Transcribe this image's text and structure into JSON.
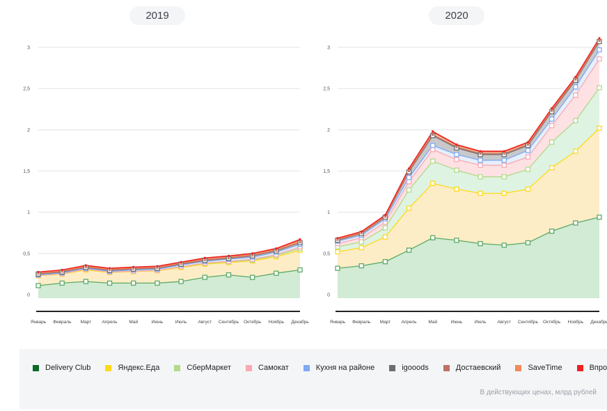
{
  "footnote": "В действующих ценах, млрд рублей",
  "legend": [
    {
      "name": "Delivery Club",
      "color": "#0b6b2a"
    },
    {
      "name": "Яндекс.Еда",
      "color": "#ffd91a"
    },
    {
      "name": "СберМаркет",
      "color": "#b3d98a"
    },
    {
      "name": "Самокат",
      "color": "#f9a9b1"
    },
    {
      "name": "Кухня на районе",
      "color": "#7eaaf5"
    },
    {
      "name": "igooods",
      "color": "#6e6e6e"
    },
    {
      "name": "Достаевский",
      "color": "#c07263"
    },
    {
      "name": "SaveTime",
      "color": "#f28a5c"
    },
    {
      "name": "Впрок",
      "color": "#ee2222"
    }
  ],
  "chart_data": [
    {
      "type": "area",
      "stacked": true,
      "title": "2019",
      "xlabel": "",
      "ylabel": "",
      "ylim": [
        0,
        3
      ],
      "yticks": [
        "0",
        "0,5",
        "1",
        "1,5",
        "2",
        "2,5",
        "3"
      ],
      "ytick_values": [
        0,
        0.5,
        1,
        1.5,
        2,
        2.5,
        3
      ],
      "grid": true,
      "categories": [
        "Январь",
        "Февраль",
        "Март",
        "Апрель",
        "Май",
        "Июнь",
        "Июль",
        "Август",
        "Сентябрь",
        "Октябрь",
        "Ноябрь",
        "Декабрь"
      ],
      "series": [
        {
          "name": "Delivery Club",
          "values": [
            0.11,
            0.14,
            0.16,
            0.14,
            0.14,
            0.14,
            0.16,
            0.21,
            0.24,
            0.21,
            0.26,
            0.3
          ]
        },
        {
          "name": "Яндекс.Еда",
          "values": [
            0.12,
            0.11,
            0.14,
            0.13,
            0.14,
            0.15,
            0.17,
            0.16,
            0.15,
            0.2,
            0.2,
            0.24
          ]
        },
        {
          "name": "СберМаркет",
          "values": [
            0.005,
            0.005,
            0.01,
            0.005,
            0.005,
            0.005,
            0.01,
            0.01,
            0.01,
            0.01,
            0.015,
            0.02
          ]
        },
        {
          "name": "Самокат",
          "values": [
            0.0,
            0.0,
            0.0,
            0.0,
            0.0,
            0.0,
            0.0,
            0.005,
            0.005,
            0.01,
            0.01,
            0.02
          ]
        },
        {
          "name": "Кухня на районе",
          "values": [
            0.005,
            0.01,
            0.01,
            0.01,
            0.015,
            0.015,
            0.02,
            0.02,
            0.025,
            0.025,
            0.03,
            0.03
          ]
        },
        {
          "name": "igooods",
          "values": [
            0.01,
            0.01,
            0.01,
            0.01,
            0.01,
            0.01,
            0.01,
            0.01,
            0.01,
            0.015,
            0.015,
            0.02
          ]
        },
        {
          "name": "Достаевский",
          "values": [
            0.005,
            0.005,
            0.005,
            0.005,
            0.005,
            0.005,
            0.005,
            0.005,
            0.005,
            0.005,
            0.005,
            0.005
          ]
        },
        {
          "name": "SaveTime",
          "values": [
            0.01,
            0.01,
            0.01,
            0.01,
            0.01,
            0.01,
            0.01,
            0.015,
            0.015,
            0.015,
            0.015,
            0.02
          ]
        },
        {
          "name": "Впрок",
          "values": [
            0.01,
            0.01,
            0.01,
            0.01,
            0.01,
            0.01,
            0.01,
            0.01,
            0.01,
            0.01,
            0.01,
            0.015
          ]
        }
      ]
    },
    {
      "type": "area",
      "stacked": true,
      "title": "2020",
      "xlabel": "",
      "ylabel": "",
      "ylim": [
        0,
        3
      ],
      "yticks": [
        "0",
        "0,5",
        "1",
        "1,5",
        "2",
        "2,5",
        "3"
      ],
      "ytick_values": [
        0,
        0.5,
        1,
        1.5,
        2,
        2.5,
        3
      ],
      "grid": true,
      "categories": [
        "Январь",
        "Февраль",
        "Март",
        "Апрель",
        "Май",
        "Июнь",
        "Июль",
        "Август",
        "Сентябрь",
        "Октябрь",
        "Ноябрь",
        "Декабрь"
      ],
      "series": [
        {
          "name": "Delivery Club",
          "values": [
            0.32,
            0.35,
            0.4,
            0.54,
            0.69,
            0.66,
            0.62,
            0.6,
            0.63,
            0.77,
            0.87,
            0.94
          ]
        },
        {
          "name": "Яндекс.Еда",
          "values": [
            0.2,
            0.22,
            0.3,
            0.51,
            0.66,
            0.62,
            0.61,
            0.63,
            0.65,
            0.77,
            0.87,
            1.08
          ]
        },
        {
          "name": "СберМаркет",
          "values": [
            0.06,
            0.07,
            0.11,
            0.22,
            0.27,
            0.23,
            0.2,
            0.2,
            0.24,
            0.31,
            0.37,
            0.49
          ]
        },
        {
          "name": "Самокат",
          "values": [
            0.04,
            0.05,
            0.07,
            0.1,
            0.14,
            0.13,
            0.14,
            0.14,
            0.15,
            0.2,
            0.31,
            0.35
          ]
        },
        {
          "name": "Кухня на районе",
          "values": [
            0.03,
            0.03,
            0.04,
            0.05,
            0.05,
            0.06,
            0.06,
            0.06,
            0.08,
            0.08,
            0.1,
            0.11
          ]
        },
        {
          "name": "igooods",
          "values": [
            0.01,
            0.02,
            0.02,
            0.07,
            0.12,
            0.08,
            0.07,
            0.07,
            0.06,
            0.09,
            0.08,
            0.1
          ]
        },
        {
          "name": "Достаевский",
          "values": [
            0.005,
            0.005,
            0.005,
            0.01,
            0.01,
            0.01,
            0.01,
            0.01,
            0.01,
            0.01,
            0.01,
            0.01
          ]
        },
        {
          "name": "SaveTime",
          "values": [
            0.01,
            0.01,
            0.01,
            0.02,
            0.03,
            0.02,
            0.02,
            0.02,
            0.02,
            0.02,
            0.02,
            0.02
          ]
        },
        {
          "name": "Впрок",
          "values": [
            0.01,
            0.01,
            0.01,
            0.01,
            0.01,
            0.01,
            0.01,
            0.01,
            0.01,
            0.01,
            0.01,
            0.01
          ]
        }
      ]
    }
  ]
}
